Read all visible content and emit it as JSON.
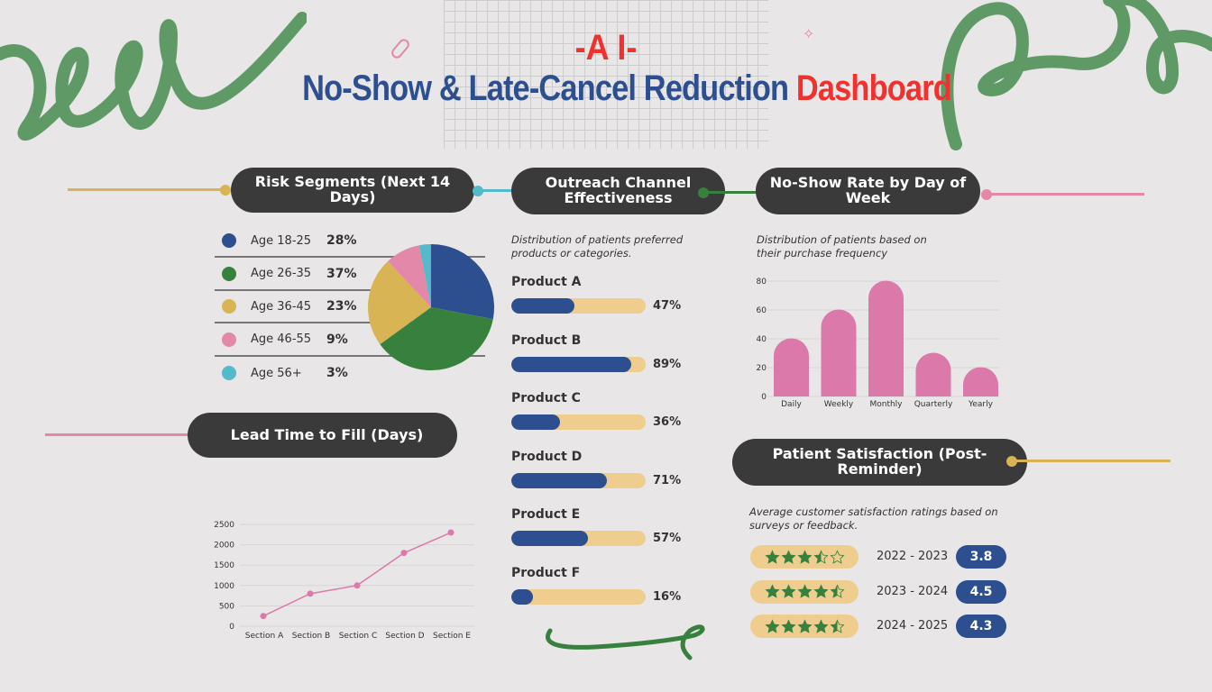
{
  "header": {
    "kicker": "-A I-",
    "title_main": "No-Show & Late-Cancel Reduction",
    "title_accent": "Dashboard"
  },
  "sections": {
    "risk": "Risk Segments (Next 14 Days)",
    "outreach": "Outreach Channel Effectiveness",
    "noshow": "No-Show Rate by Day of Week",
    "lead": "Lead Time to Fill (Days)",
    "satisfaction": "Patient Satisfaction (Post-Reminder)"
  },
  "colors": {
    "blue": "#2d4f8f",
    "green": "#38803e",
    "yellow": "#d8b455",
    "pink": "#e388a9",
    "cyan": "#55b9c9",
    "red": "#f0312e",
    "bar_pink": "#db7aaa"
  },
  "chart_data": [
    {
      "type": "pie",
      "categories": [
        "Age 18-25",
        "Age 26-35",
        "Age 36-45",
        "Age 46-55",
        "Age 56+"
      ],
      "values": [
        28,
        37,
        23,
        9,
        3
      ],
      "labels": [
        "28%",
        "37%",
        "23%",
        "9%",
        "3%"
      ],
      "colors": [
        "#2d4f8f",
        "#38803e",
        "#d8b455",
        "#e388a9",
        "#55b9c9"
      ],
      "legend": "left"
    },
    {
      "type": "bar",
      "orientation": "horizontal",
      "subtitle": "Distribution of patients preferred products or categories.",
      "categories": [
        "Product A",
        "Product B",
        "Product C",
        "Product D",
        "Product E",
        "Product F"
      ],
      "values": [
        47,
        89,
        36,
        71,
        57,
        16
      ],
      "labels": [
        "47%",
        "89%",
        "36%",
        "71%",
        "57%",
        "16%"
      ],
      "xlim": [
        0,
        100
      ]
    },
    {
      "type": "bar",
      "subtitle": "Distribution of patients based on their purchase frequency",
      "categories": [
        "Daily",
        "Weekly",
        "Monthly",
        "Quarterly",
        "Yearly"
      ],
      "values": [
        40,
        60,
        80,
        30,
        20
      ],
      "ylim": [
        0,
        80
      ],
      "yticks": [
        0,
        20,
        40,
        60,
        80
      ],
      "grid": true
    },
    {
      "type": "line",
      "categories": [
        "Section A",
        "Section B",
        "Section C",
        "Section D",
        "Section E"
      ],
      "values": [
        250,
        800,
        1000,
        1800,
        2300
      ],
      "ylim": [
        0,
        2500
      ],
      "yticks": [
        0,
        500,
        1000,
        1500,
        2000,
        2500
      ],
      "grid": true
    },
    {
      "type": "table",
      "subtitle": "Average customer satisfaction ratings based on surveys or feedback.",
      "rows": [
        {
          "period": "2022 - 2023",
          "score": "3.8",
          "stars": 3.5
        },
        {
          "period": "2023 - 2024",
          "score": "4.5",
          "stars": 4.5
        },
        {
          "period": "2024 - 2025",
          "score": "4.3",
          "stars": 4.5
        }
      ]
    }
  ]
}
